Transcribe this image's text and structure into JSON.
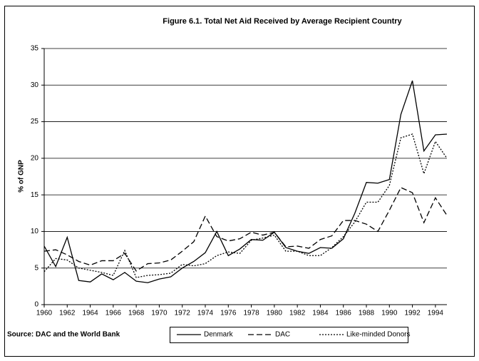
{
  "chart_data": {
    "type": "line",
    "title": "Figure 6.1.  Total Net Aid Received by Average Recipient Country",
    "y_label": "% of GNP",
    "source": "Source: DAC and the World Bank",
    "x": [
      1960,
      1961,
      1962,
      1963,
      1964,
      1965,
      1966,
      1967,
      1968,
      1969,
      1970,
      1971,
      1972,
      1973,
      1974,
      1975,
      1976,
      1977,
      1978,
      1979,
      1980,
      1981,
      1982,
      1983,
      1984,
      1985,
      1986,
      1987,
      1988,
      1989,
      1990,
      1991,
      1992,
      1993,
      1994,
      1995
    ],
    "series": [
      {
        "name": "Denmark",
        "color": "#000000",
        "dash": "solid",
        "values": [
          8.0,
          5.2,
          9.2,
          3.3,
          3.1,
          4.2,
          3.4,
          4.4,
          3.2,
          3.0,
          3.5,
          3.8,
          5.0,
          5.9,
          7.1,
          10.0,
          6.7,
          7.6,
          8.9,
          8.8,
          9.9,
          7.8,
          7.3,
          7.0,
          7.8,
          7.7,
          9.0,
          12.5,
          16.7,
          16.6,
          17.1,
          26.0,
          30.6,
          21.0,
          23.2,
          23.3
        ]
      },
      {
        "name": "DAC",
        "color": "#000000",
        "dash": "dashed",
        "values": [
          7.3,
          7.5,
          6.8,
          5.9,
          5.4,
          6.0,
          6.0,
          7.0,
          4.6,
          5.6,
          5.7,
          6.1,
          7.3,
          8.6,
          12.1,
          9.3,
          8.7,
          9.0,
          9.9,
          9.5,
          9.9,
          7.9,
          8.0,
          7.7,
          8.9,
          9.4,
          11.5,
          11.5,
          11.0,
          10.0,
          12.9,
          16.0,
          15.3,
          11.2,
          14.6,
          12.2
        ]
      },
      {
        "name": "Like-minded Donors",
        "color": "#000000",
        "dash": "dotted",
        "values": [
          4.5,
          6.3,
          6.1,
          5.0,
          4.7,
          4.4,
          4.0,
          7.4,
          3.7,
          4.0,
          4.1,
          4.3,
          5.5,
          5.3,
          5.6,
          6.7,
          7.2,
          7.0,
          8.8,
          9.1,
          9.5,
          7.3,
          7.3,
          6.7,
          6.7,
          7.8,
          9.3,
          11.3,
          14.0,
          14.0,
          16.3,
          22.8,
          23.3,
          17.9,
          22.3,
          20.0
        ]
      }
    ],
    "xlim": [
      1960,
      1995
    ],
    "xticks": [
      1960,
      1962,
      1964,
      1966,
      1968,
      1970,
      1972,
      1974,
      1976,
      1978,
      1980,
      1982,
      1984,
      1986,
      1988,
      1990,
      1992,
      1994
    ],
    "ylim": [
      0,
      35
    ],
    "yticks": [
      0,
      5,
      10,
      15,
      20,
      25,
      30,
      35
    ],
    "grid": true
  }
}
